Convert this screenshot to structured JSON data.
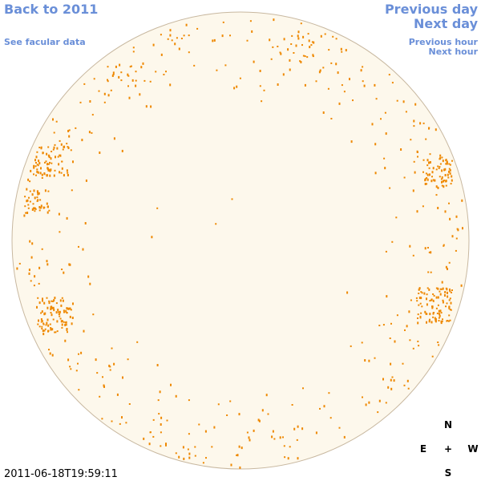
{
  "header": {
    "back_link": "Back to 2011",
    "facular_link": "See facular data",
    "previous_day": "Previous day",
    "next_day": "Next day",
    "previous_hour": "Previous hour",
    "next_hour": "Next hour"
  },
  "timestamp": "2011-06-18T19:59:11",
  "compass": {
    "north": "N",
    "east": "E",
    "center": "+",
    "west": "W",
    "south": "S"
  }
}
